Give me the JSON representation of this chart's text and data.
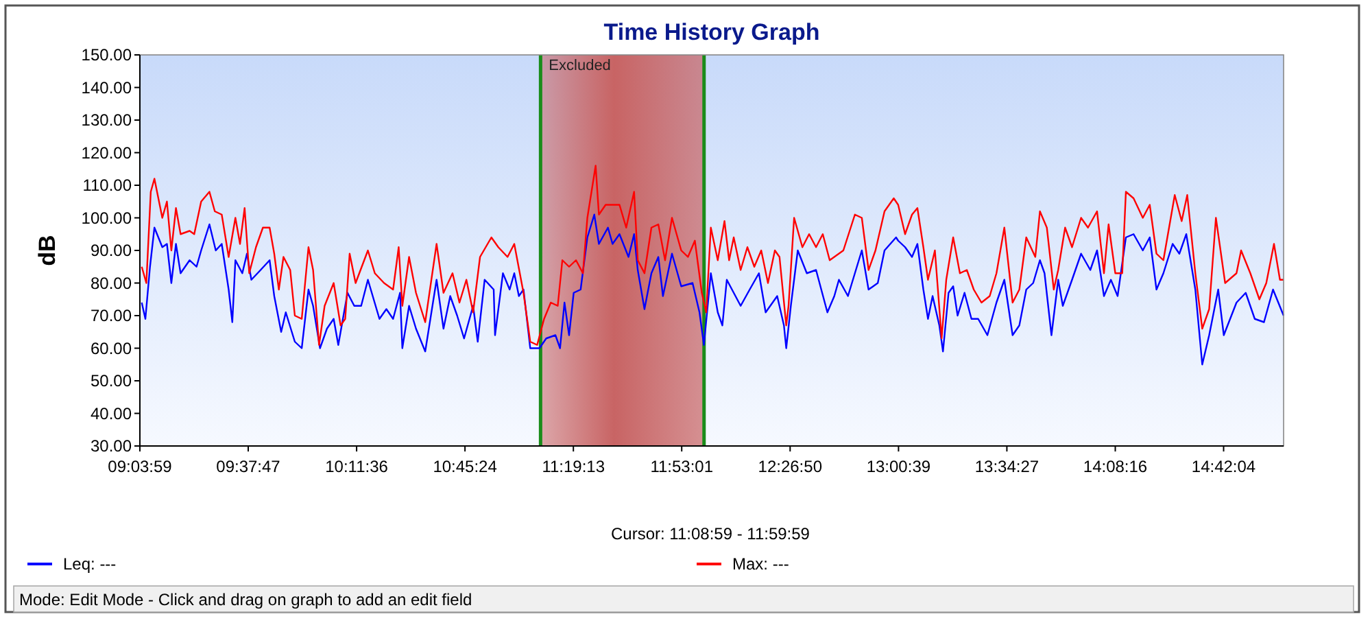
{
  "chart_data": {
    "type": "line",
    "title": "Time History Graph",
    "ylabel": "dB",
    "xlim": [
      9.0664,
      15.013
    ],
    "xticks": [
      {
        "value": 9.0664,
        "label": "09:03:59"
      },
      {
        "value": 9.6297,
        "label": "09:37:47"
      },
      {
        "value": 10.1933,
        "label": "10:11:36"
      },
      {
        "value": 10.7567,
        "label": "10:45:24"
      },
      {
        "value": 11.3203,
        "label": "11:19:13"
      },
      {
        "value": 11.8836,
        "label": "11:53:01"
      },
      {
        "value": 12.4472,
        "label": "12:26:50"
      },
      {
        "value": 13.0108,
        "label": "13:00:39"
      },
      {
        "value": 13.5742,
        "label": "13:34:27"
      },
      {
        "value": 14.1378,
        "label": "14:08:16"
      },
      {
        "value": 14.7011,
        "label": "14:42:04"
      }
    ],
    "ylim": [
      30,
      150
    ],
    "yticks": [
      {
        "value": 30,
        "label": "30.00"
      },
      {
        "value": 40,
        "label": "40.00"
      },
      {
        "value": 50,
        "label": "50.00"
      },
      {
        "value": 60,
        "label": "60.00"
      },
      {
        "value": 70,
        "label": "70.00"
      },
      {
        "value": 80,
        "label": "80.00"
      },
      {
        "value": 90,
        "label": "90.00"
      },
      {
        "value": 100,
        "label": "100.00"
      },
      {
        "value": 110,
        "label": "110.00"
      },
      {
        "value": 120,
        "label": "120.00"
      },
      {
        "value": 130,
        "label": "130.00"
      },
      {
        "value": 140,
        "label": "140.00"
      },
      {
        "value": 150,
        "label": "150.00"
      }
    ],
    "legend": "bottom",
    "marker": "none",
    "line_style": "solid",
    "ref_lines": [
      {
        "axis": "x",
        "value": 11.1497,
        "color": "#1a8c1a"
      },
      {
        "axis": "x",
        "value": 11.9997,
        "color": "#1a8c1a"
      }
    ],
    "bands": [
      {
        "axis": "x",
        "from": 11.1497,
        "to": 11.9997,
        "label": "Excluded",
        "color": "#c86464"
      }
    ],
    "annotations": [
      "Cursor: 11:08:59 - 11:59:59",
      "Mode: Edit Mode - Click and drag on graph to add an edit field"
    ],
    "series": [
      {
        "name": "Leq: ---",
        "color": "#0000ff",
        "x": [
          9.076,
          9.095,
          9.119,
          9.142,
          9.183,
          9.207,
          9.23,
          9.254,
          9.278,
          9.325,
          9.361,
          9.385,
          9.428,
          9.461,
          9.492,
          9.528,
          9.547,
          9.563,
          9.599,
          9.623,
          9.646,
          9.694,
          9.741,
          9.765,
          9.801,
          9.825,
          9.872,
          9.908,
          9.943,
          9.967,
          10.003,
          10.039,
          10.074,
          10.098,
          10.146,
          10.181,
          10.217,
          10.252,
          10.312,
          10.348,
          10.383,
          10.419,
          10.431,
          10.466,
          10.502,
          10.55,
          10.609,
          10.645,
          10.68,
          10.716,
          10.752,
          10.799,
          10.823,
          10.859,
          10.906,
          10.913,
          10.954,
          10.989,
          11.013,
          11.037,
          11.061,
          11.096,
          11.144,
          11.179,
          11.227,
          11.251,
          11.274,
          11.298,
          11.322,
          11.358,
          11.393,
          11.429,
          11.453,
          11.5,
          11.524,
          11.56,
          11.607,
          11.636,
          11.655,
          11.69,
          11.726,
          11.762,
          11.786,
          11.833,
          11.881,
          11.94,
          11.976,
          11.999,
          12.035,
          12.071,
          12.095,
          12.118,
          12.154,
          12.19,
          12.237,
          12.285,
          12.32,
          12.38,
          12.415,
          12.427,
          12.451,
          12.487,
          12.534,
          12.582,
          12.641,
          12.677,
          12.701,
          12.748,
          12.784,
          12.82,
          12.855,
          12.903,
          12.938,
          12.998,
          13.009,
          13.045,
          13.081,
          13.109,
          13.14,
          13.164,
          13.188,
          13.223,
          13.242,
          13.271,
          13.295,
          13.318,
          13.354,
          13.39,
          13.425,
          13.473,
          13.52,
          13.561,
          13.604,
          13.639,
          13.675,
          13.711,
          13.746,
          13.77,
          13.806,
          13.841,
          13.865,
          13.913,
          13.96,
          14.008,
          14.043,
          14.079,
          14.115,
          14.15,
          14.193,
          14.233,
          14.281,
          14.317,
          14.352,
          14.388,
          14.436,
          14.471,
          14.507,
          14.554,
          14.59,
          14.626,
          14.673,
          14.702,
          14.768,
          14.816,
          14.863,
          14.911,
          14.958,
          15.013
        ],
        "values": [
          74,
          69,
          85,
          97,
          91,
          92,
          80,
          92,
          83,
          87,
          85,
          90,
          98,
          90,
          92,
          78,
          68,
          87,
          83,
          89,
          81,
          84,
          87,
          76,
          65,
          71,
          62,
          60,
          78,
          73,
          60,
          66,
          69,
          61,
          77,
          73,
          73,
          81,
          69,
          72,
          69,
          77,
          60,
          73,
          66,
          59,
          81,
          66,
          76,
          70,
          63,
          73,
          62,
          81,
          78,
          64,
          83,
          78,
          83,
          76,
          78,
          60,
          60,
          63,
          64,
          60,
          74,
          64,
          77,
          78,
          94,
          101,
          92,
          97,
          92,
          95,
          88,
          95,
          84,
          72,
          83,
          88,
          76,
          89,
          79,
          80,
          71,
          61,
          83,
          71,
          67,
          81,
          77,
          73,
          78,
          83,
          71,
          76,
          67,
          60,
          73,
          90,
          83,
          84,
          71,
          76,
          81,
          76,
          83,
          90,
          78,
          80,
          90,
          94,
          93,
          91,
          88,
          92,
          78,
          69,
          76,
          67,
          59,
          77,
          79,
          70,
          77,
          69,
          69,
          64,
          74,
          81,
          64,
          67,
          78,
          80,
          87,
          83,
          64,
          81,
          73,
          81,
          89,
          84,
          90,
          76,
          81,
          76,
          94,
          95,
          90,
          94,
          78,
          83,
          92,
          89,
          95,
          78,
          55,
          64,
          78,
          64,
          74,
          77,
          69,
          68,
          78,
          70
        ]
      },
      {
        "name": "Max: ---",
        "color": "#ff0000",
        "x": [
          9.076,
          9.1,
          9.123,
          9.142,
          9.183,
          9.207,
          9.23,
          9.254,
          9.278,
          9.325,
          9.349,
          9.385,
          9.428,
          9.456,
          9.492,
          9.528,
          9.563,
          9.587,
          9.611,
          9.635,
          9.67,
          9.706,
          9.741,
          9.765,
          9.789,
          9.813,
          9.848,
          9.872,
          9.908,
          9.943,
          9.967,
          9.998,
          10.027,
          10.074,
          10.11,
          10.134,
          10.157,
          10.188,
          10.252,
          10.288,
          10.336,
          10.383,
          10.412,
          10.431,
          10.466,
          10.502,
          10.55,
          10.609,
          10.645,
          10.692,
          10.728,
          10.764,
          10.799,
          10.835,
          10.894,
          10.93,
          10.978,
          11.013,
          11.061,
          11.096,
          11.132,
          11.168,
          11.203,
          11.239,
          11.263,
          11.298,
          11.334,
          11.37,
          11.393,
          11.436,
          11.453,
          11.488,
          11.524,
          11.56,
          11.595,
          11.636,
          11.655,
          11.69,
          11.726,
          11.762,
          11.797,
          11.833,
          11.881,
          11.916,
          11.952,
          11.988,
          12.011,
          12.035,
          12.071,
          12.106,
          12.13,
          12.154,
          12.19,
          12.225,
          12.261,
          12.297,
          12.332,
          12.368,
          12.392,
          12.427,
          12.439,
          12.468,
          12.511,
          12.546,
          12.582,
          12.617,
          12.653,
          12.724,
          12.784,
          12.82,
          12.855,
          12.891,
          12.938,
          12.986,
          13.009,
          13.045,
          13.081,
          13.109,
          13.14,
          13.164,
          13.2,
          13.235,
          13.259,
          13.295,
          13.33,
          13.366,
          13.402,
          13.442,
          13.485,
          13.52,
          13.561,
          13.604,
          13.639,
          13.675,
          13.722,
          13.746,
          13.782,
          13.818,
          13.841,
          13.877,
          13.913,
          13.96,
          13.996,
          14.043,
          14.079,
          14.103,
          14.138,
          14.174,
          14.193,
          14.233,
          14.281,
          14.317,
          14.352,
          14.388,
          14.447,
          14.483,
          14.512,
          14.554,
          14.59,
          14.626,
          14.661,
          14.709,
          14.768,
          14.792,
          14.84,
          14.887,
          14.923,
          14.963,
          14.994,
          15.013
        ],
        "values": [
          85,
          80,
          108,
          112,
          100,
          105,
          90,
          103,
          95,
          96,
          95,
          105,
          108,
          102,
          101,
          88,
          100,
          92,
          103,
          83,
          91,
          97,
          97,
          89,
          78,
          88,
          84,
          70,
          69,
          91,
          84,
          61,
          73,
          80,
          67,
          69,
          89,
          80,
          90,
          83,
          80,
          78,
          91,
          73,
          88,
          77,
          68,
          92,
          77,
          83,
          74,
          81,
          71,
          88,
          94,
          91,
          88,
          92,
          77,
          62,
          61,
          69,
          74,
          73,
          87,
          85,
          87,
          83,
          100,
          116,
          101,
          104,
          104,
          104,
          97,
          108,
          87,
          83,
          97,
          98,
          87,
          100,
          90,
          88,
          93,
          77,
          71,
          97,
          87,
          99,
          87,
          94,
          84,
          91,
          85,
          90,
          80,
          90,
          88,
          67,
          73,
          100,
          91,
          95,
          91,
          95,
          87,
          90,
          101,
          100,
          84,
          90,
          102,
          106,
          104,
          95,
          101,
          103,
          91,
          81,
          90,
          63,
          81,
          94,
          83,
          84,
          78,
          74,
          76,
          83,
          97,
          74,
          78,
          94,
          88,
          102,
          97,
          78,
          84,
          97,
          91,
          100,
          97,
          102,
          83,
          98,
          83,
          83,
          108,
          106,
          100,
          104,
          89,
          87,
          107,
          99,
          107,
          83,
          66,
          72,
          100,
          80,
          83,
          90,
          83,
          75,
          80,
          92,
          81,
          81
        ]
      }
    ]
  }
}
